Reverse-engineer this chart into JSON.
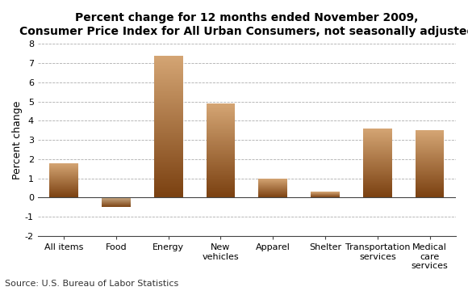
{
  "categories": [
    "All items",
    "Food",
    "Energy",
    "New\nvehicles",
    "Apparel",
    "Shelter",
    "Transportation\nservices",
    "Medical\ncare\nservices"
  ],
  "values": [
    1.8,
    -0.5,
    7.4,
    4.9,
    1.0,
    0.3,
    3.6,
    3.5
  ],
  "title_line1": "Percent change for 12 months ended November 2009,",
  "title_line2": "Consumer Price Index for All Urban Consumers, not seasonally adjusted",
  "ylabel": "Percent change",
  "ylim": [
    -2,
    8
  ],
  "yticks": [
    -2,
    -1,
    0,
    1,
    2,
    3,
    4,
    5,
    6,
    7,
    8
  ],
  "source_text": "Source: U.S. Bureau of Labor Statistics",
  "bar_color_top": "#d4a574",
  "bar_color_mid": "#c8855a",
  "bar_color_bottom": "#7a4010",
  "bar_neg_color_top": "#c8a882",
  "bar_neg_color_bottom": "#7a4010",
  "background_color": "#ffffff",
  "grid_color": "#999999",
  "title_fontsize": 10,
  "axis_label_fontsize": 9,
  "tick_fontsize": 8,
  "source_fontsize": 8
}
